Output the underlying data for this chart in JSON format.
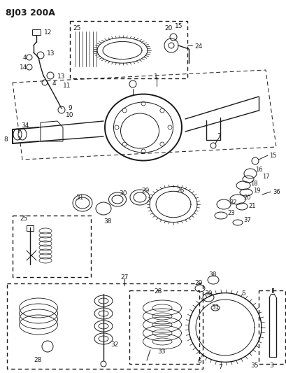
{
  "title": "8J03 200A",
  "bg_color": "#ffffff",
  "diagram_color": "#1a1a1a",
  "fig_width": 4.1,
  "fig_height": 5.33,
  "dpi": 100
}
